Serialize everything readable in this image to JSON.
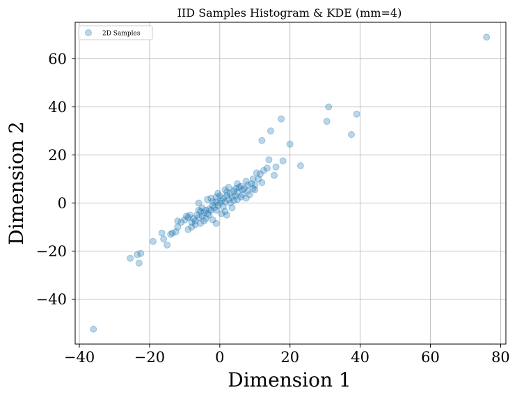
{
  "chart_data": {
    "type": "scatter",
    "title": "IID Samples Histogram & KDE (mm=4)",
    "xlabel": "Dimension 1",
    "ylabel": "Dimension 2",
    "xlim": [
      -41.2,
      81.5
    ],
    "ylim": [
      -58.7,
      75.2
    ],
    "xticks": [
      -40,
      -20,
      0,
      20,
      40,
      60,
      80
    ],
    "yticks": [
      -40,
      -20,
      0,
      20,
      40,
      60
    ],
    "xtick_labels": [
      "−40",
      "−20",
      "0",
      "20",
      "40",
      "60",
      "80"
    ],
    "ytick_labels": [
      "−40",
      "−20",
      "0",
      "20",
      "40",
      "60"
    ],
    "grid": true,
    "legend": {
      "position": "top-left",
      "entries": [
        "2D Samples"
      ]
    },
    "series": [
      {
        "name": "2D Samples",
        "color": "#1f77b4",
        "alpha": 0.3,
        "points": [
          [
            76,
            69
          ],
          [
            -36,
            -52.5
          ],
          [
            31,
            40
          ],
          [
            39,
            37
          ],
          [
            30.5,
            34
          ],
          [
            37.5,
            28.5
          ],
          [
            17.5,
            35
          ],
          [
            14.5,
            30
          ],
          [
            12,
            26
          ],
          [
            20,
            24.5
          ],
          [
            23,
            15.5
          ],
          [
            18,
            17.5
          ],
          [
            16,
            15
          ],
          [
            15.5,
            11.5
          ],
          [
            14,
            18
          ],
          [
            13.5,
            14.5
          ],
          [
            12.5,
            13.5
          ],
          [
            11.5,
            12
          ],
          [
            10.5,
            12.5
          ],
          [
            9.5,
            10
          ],
          [
            12,
            8.5
          ],
          [
            9.5,
            6
          ],
          [
            10,
            5.5
          ],
          [
            9,
            8
          ],
          [
            8,
            7.5
          ],
          [
            7.5,
            9
          ],
          [
            6.5,
            5.5
          ],
          [
            5.5,
            6.5
          ],
          [
            4.5,
            3
          ],
          [
            5,
            4.5
          ],
          [
            6,
            7
          ],
          [
            3.5,
            2.5
          ],
          [
            4,
            5
          ],
          [
            3,
            4
          ],
          [
            2.5,
            1.5
          ],
          [
            2,
            3
          ],
          [
            1.5,
            0.5
          ],
          [
            1,
            2
          ],
          [
            0.5,
            1
          ],
          [
            0,
            0
          ],
          [
            -0.5,
            -1
          ],
          [
            -1,
            0.5
          ],
          [
            -1.5,
            -2
          ],
          [
            -2,
            -1
          ],
          [
            -2.5,
            -3
          ],
          [
            -3,
            -2.5
          ],
          [
            -3.5,
            -4.5
          ],
          [
            -4,
            -3
          ],
          [
            -4.5,
            -4
          ],
          [
            -5,
            -5.5
          ],
          [
            -5.5,
            -3.5
          ],
          [
            -6,
            -6
          ],
          [
            -6.5,
            -5
          ],
          [
            -7,
            -7.5
          ],
          [
            -7.5,
            -6.5
          ],
          [
            -8,
            -8
          ],
          [
            -8.5,
            -5
          ],
          [
            -9,
            -6
          ],
          [
            -9.5,
            -5.5
          ],
          [
            -10,
            -7
          ],
          [
            3,
            0
          ],
          [
            1,
            -1.5
          ],
          [
            -1,
            2.5
          ],
          [
            2,
            4.5
          ],
          [
            4,
            1
          ],
          [
            0,
            3
          ],
          [
            -2,
            0.5
          ],
          [
            -3,
            -5
          ],
          [
            -5,
            -2
          ],
          [
            -1,
            -3
          ],
          [
            6,
            2.5
          ],
          [
            7,
            6
          ],
          [
            8,
            5
          ],
          [
            5,
            1.5
          ],
          [
            -4,
            -6.5
          ],
          [
            -6,
            -3
          ],
          [
            1.5,
            -3.5
          ],
          [
            -0.5,
            4
          ],
          [
            -7,
            -9
          ],
          [
            2.5,
            6.5
          ],
          [
            -6,
            0
          ],
          [
            2,
            -5
          ],
          [
            -1,
            -8.5
          ],
          [
            5,
            8
          ],
          [
            7.5,
            2
          ],
          [
            -2,
            -7
          ],
          [
            10,
            7.5
          ],
          [
            11,
            10
          ],
          [
            -8,
            -10
          ],
          [
            -9,
            -11
          ],
          [
            -11,
            -8
          ],
          [
            -12,
            -7.5
          ],
          [
            -12,
            -10
          ],
          [
            -12.5,
            -12
          ],
          [
            -13.5,
            -12.5
          ],
          [
            -14,
            -13
          ],
          [
            -16.5,
            -12.5
          ],
          [
            -16,
            -15
          ],
          [
            -15,
            -17.5
          ],
          [
            -19,
            -16
          ],
          [
            -22.5,
            -21
          ],
          [
            -23.5,
            -21.5
          ],
          [
            -23,
            -25
          ],
          [
            -25.5,
            -23
          ],
          [
            3.5,
            -2
          ],
          [
            -3.5,
            1.5
          ],
          [
            0.5,
            -4.5
          ],
          [
            4.5,
            6
          ],
          [
            -4.5,
            -7.5
          ],
          [
            6.5,
            3.5
          ],
          [
            -5.5,
            -8.5
          ],
          [
            8.5,
            3.5
          ],
          [
            -2.5,
            2
          ],
          [
            1.5,
            5.5
          ]
        ]
      }
    ]
  }
}
